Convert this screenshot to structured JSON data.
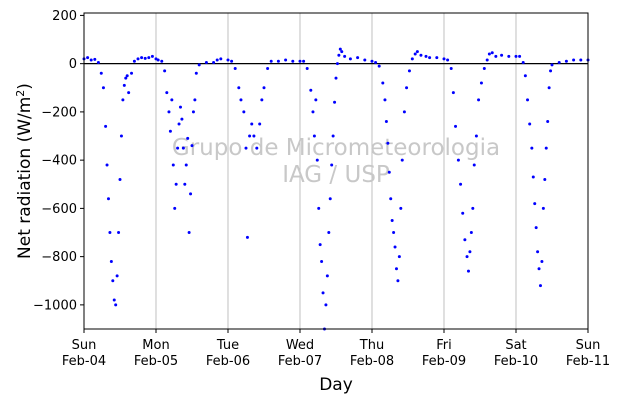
{
  "chart_data": {
    "type": "scatter",
    "xlabel": "Day",
    "ylabel": "Net radiation (W/m²)",
    "ylabel_base": "Net radiation (W/m",
    "ylabel_sup": "2",
    "ylabel_close": ")",
    "watermark": [
      "Grupo de Micrometeorologia",
      "IAG / USP"
    ],
    "ylim": [
      -1100,
      210
    ],
    "xlim": [
      0,
      7
    ],
    "yticks": [
      200,
      0,
      -200,
      -400,
      -600,
      -800,
      -1000
    ],
    "xticks": [
      {
        "x": 0,
        "day": "Sun",
        "date": "Feb-04"
      },
      {
        "x": 1,
        "day": "Mon",
        "date": "Feb-05"
      },
      {
        "x": 2,
        "day": "Tue",
        "date": "Feb-06"
      },
      {
        "x": 3,
        "day": "Wed",
        "date": "Feb-07"
      },
      {
        "x": 4,
        "day": "Thu",
        "date": "Feb-08"
      },
      {
        "x": 5,
        "day": "Fri",
        "date": "Feb-09"
      },
      {
        "x": 6,
        "day": "Sat",
        "date": "Feb-10"
      },
      {
        "x": 7,
        "day": "Sun",
        "date": "Feb-11"
      }
    ],
    "grid": "vertical",
    "marker_color": "#0000ff",
    "zero_line": true,
    "series": [
      {
        "values": [
          [
            0.0,
            20
          ],
          [
            0.05,
            25
          ],
          [
            0.1,
            15
          ],
          [
            0.15,
            18
          ],
          [
            0.2,
            5
          ],
          [
            0.24,
            -40
          ],
          [
            0.27,
            -100
          ],
          [
            0.3,
            -260
          ],
          [
            0.32,
            -420
          ],
          [
            0.34,
            -560
          ],
          [
            0.36,
            -700
          ],
          [
            0.38,
            -820
          ],
          [
            0.4,
            -900
          ],
          [
            0.42,
            -980
          ],
          [
            0.44,
            -1000
          ],
          [
            0.46,
            -880
          ],
          [
            0.48,
            -700
          ],
          [
            0.5,
            -480
          ],
          [
            0.52,
            -300
          ],
          [
            0.54,
            -150
          ],
          [
            0.56,
            -90
          ],
          [
            0.58,
            -60
          ],
          [
            0.6,
            -50
          ],
          [
            0.62,
            -120
          ],
          [
            0.66,
            -40
          ],
          [
            0.7,
            10
          ],
          [
            0.75,
            20
          ],
          [
            0.8,
            25
          ],
          [
            0.85,
            22
          ],
          [
            0.9,
            25
          ],
          [
            0.95,
            30
          ],
          [
            1.0,
            20
          ],
          [
            1.03,
            15
          ],
          [
            1.08,
            10
          ],
          [
            1.12,
            -30
          ],
          [
            1.15,
            -120
          ],
          [
            1.18,
            -200
          ],
          [
            1.2,
            -280
          ],
          [
            1.22,
            -150
          ],
          [
            1.24,
            -420
          ],
          [
            1.26,
            -600
          ],
          [
            1.28,
            -500
          ],
          [
            1.3,
            -350
          ],
          [
            1.32,
            -250
          ],
          [
            1.34,
            -180
          ],
          [
            1.36,
            -230
          ],
          [
            1.38,
            -350
          ],
          [
            1.4,
            -500
          ],
          [
            1.42,
            -420
          ],
          [
            1.44,
            -310
          ],
          [
            1.46,
            -700
          ],
          [
            1.48,
            -540
          ],
          [
            1.5,
            -340
          ],
          [
            1.52,
            -200
          ],
          [
            1.54,
            -150
          ],
          [
            1.56,
            -40
          ],
          [
            1.6,
            -5
          ],
          [
            1.7,
            5
          ],
          [
            1.8,
            5
          ],
          [
            1.85,
            15
          ],
          [
            1.9,
            20
          ],
          [
            2.0,
            15
          ],
          [
            2.05,
            10
          ],
          [
            2.1,
            -20
          ],
          [
            2.15,
            -100
          ],
          [
            2.18,
            -150
          ],
          [
            2.22,
            -200
          ],
          [
            2.25,
            -350
          ],
          [
            2.27,
            -720
          ],
          [
            2.3,
            -300
          ],
          [
            2.33,
            -250
          ],
          [
            2.36,
            -300
          ],
          [
            2.4,
            -350
          ],
          [
            2.44,
            -250
          ],
          [
            2.47,
            -150
          ],
          [
            2.5,
            -100
          ],
          [
            2.55,
            -20
          ],
          [
            2.6,
            10
          ],
          [
            2.7,
            10
          ],
          [
            2.8,
            15
          ],
          [
            2.9,
            10
          ],
          [
            3.0,
            10
          ],
          [
            3.05,
            10
          ],
          [
            3.1,
            -20
          ],
          [
            3.15,
            -110
          ],
          [
            3.18,
            -200
          ],
          [
            3.2,
            -300
          ],
          [
            3.22,
            -150
          ],
          [
            3.24,
            -400
          ],
          [
            3.26,
            -600
          ],
          [
            3.28,
            -750
          ],
          [
            3.3,
            -820
          ],
          [
            3.32,
            -950
          ],
          [
            3.34,
            -1100
          ],
          [
            3.36,
            -1000
          ],
          [
            3.38,
            -880
          ],
          [
            3.4,
            -700
          ],
          [
            3.42,
            -560
          ],
          [
            3.44,
            -420
          ],
          [
            3.46,
            -300
          ],
          [
            3.48,
            -160
          ],
          [
            3.5,
            -60
          ],
          [
            3.52,
            0
          ],
          [
            3.54,
            35
          ],
          [
            3.56,
            60
          ],
          [
            3.58,
            50
          ],
          [
            3.62,
            30
          ],
          [
            3.7,
            20
          ],
          [
            3.8,
            25
          ],
          [
            3.9,
            15
          ],
          [
            4.0,
            10
          ],
          [
            4.05,
            5
          ],
          [
            4.1,
            -10
          ],
          [
            4.15,
            -80
          ],
          [
            4.18,
            -150
          ],
          [
            4.2,
            -240
          ],
          [
            4.22,
            -330
          ],
          [
            4.24,
            -450
          ],
          [
            4.26,
            -560
          ],
          [
            4.28,
            -650
          ],
          [
            4.3,
            -700
          ],
          [
            4.32,
            -760
          ],
          [
            4.34,
            -850
          ],
          [
            4.36,
            -900
          ],
          [
            4.38,
            -800
          ],
          [
            4.4,
            -600
          ],
          [
            4.42,
            -400
          ],
          [
            4.45,
            -200
          ],
          [
            4.48,
            -100
          ],
          [
            4.52,
            -30
          ],
          [
            4.56,
            20
          ],
          [
            4.6,
            40
          ],
          [
            4.63,
            50
          ],
          [
            4.68,
            35
          ],
          [
            4.75,
            30
          ],
          [
            4.8,
            25
          ],
          [
            4.9,
            25
          ],
          [
            5.0,
            20
          ],
          [
            5.05,
            15
          ],
          [
            5.1,
            -20
          ],
          [
            5.13,
            -120
          ],
          [
            5.16,
            -260
          ],
          [
            5.2,
            -400
          ],
          [
            5.23,
            -500
          ],
          [
            5.26,
            -620
          ],
          [
            5.29,
            -730
          ],
          [
            5.32,
            -800
          ],
          [
            5.34,
            -860
          ],
          [
            5.36,
            -780
          ],
          [
            5.38,
            -700
          ],
          [
            5.4,
            -600
          ],
          [
            5.42,
            -420
          ],
          [
            5.45,
            -300
          ],
          [
            5.48,
            -150
          ],
          [
            5.52,
            -80
          ],
          [
            5.56,
            -20
          ],
          [
            5.6,
            15
          ],
          [
            5.63,
            40
          ],
          [
            5.67,
            45
          ],
          [
            5.72,
            30
          ],
          [
            5.8,
            35
          ],
          [
            5.9,
            30
          ],
          [
            6.0,
            30
          ],
          [
            6.05,
            30
          ],
          [
            6.1,
            5
          ],
          [
            6.13,
            -50
          ],
          [
            6.16,
            -150
          ],
          [
            6.19,
            -250
          ],
          [
            6.22,
            -350
          ],
          [
            6.24,
            -470
          ],
          [
            6.26,
            -580
          ],
          [
            6.28,
            -680
          ],
          [
            6.3,
            -780
          ],
          [
            6.32,
            -850
          ],
          [
            6.34,
            -920
          ],
          [
            6.36,
            -820
          ],
          [
            6.38,
            -600
          ],
          [
            6.4,
            -480
          ],
          [
            6.42,
            -350
          ],
          [
            6.44,
            -240
          ],
          [
            6.46,
            -100
          ],
          [
            6.48,
            -30
          ],
          [
            6.5,
            -5
          ],
          [
            6.6,
            5
          ],
          [
            6.7,
            10
          ],
          [
            6.8,
            15
          ],
          [
            6.9,
            15
          ],
          [
            7.0,
            15
          ]
        ]
      }
    ]
  }
}
